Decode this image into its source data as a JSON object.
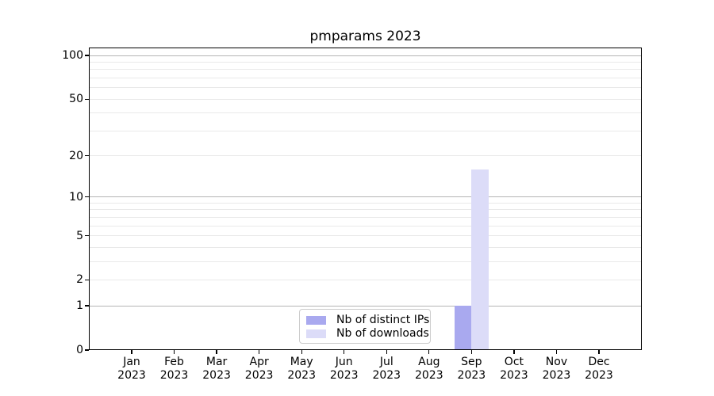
{
  "chart_data": {
    "type": "bar",
    "title": "pmparams 2023",
    "months": [
      "Jan",
      "Feb",
      "Mar",
      "Apr",
      "May",
      "Jun",
      "Jul",
      "Aug",
      "Sep",
      "Oct",
      "Nov",
      "Dec"
    ],
    "year_label": "2023",
    "series": [
      {
        "name": "Nb of distinct IPs",
        "color": "#a9a9ef",
        "values": [
          0,
          0,
          0,
          0,
          0,
          0,
          0,
          0,
          1,
          0,
          0,
          0
        ]
      },
      {
        "name": "Nb of downloads",
        "color": "#dcdcf8",
        "values": [
          0,
          0,
          0,
          0,
          0,
          0,
          0,
          0,
          16,
          0,
          0,
          0
        ]
      }
    ],
    "xlabel": "",
    "ylabel": "",
    "y_scale": "log1p",
    "y_ticks": [
      0,
      1,
      2,
      5,
      10,
      20,
      50,
      100
    ],
    "y_major_gridlines": [
      1,
      10,
      100
    ],
    "y_minor_gridlines": [
      2,
      3,
      4,
      5,
      6,
      7,
      8,
      9,
      20,
      30,
      40,
      50,
      60,
      70,
      80,
      90
    ],
    "ylim": [
      0,
      113.5
    ],
    "grid": "on",
    "legend_position": "lower-center",
    "colors": {
      "major_grid": "#b4b4b4",
      "minor_grid": "#e9e9e9",
      "spine": "#000000",
      "text": "#000000",
      "legend_border": "#cccccc",
      "background": "#ffffff"
    }
  }
}
